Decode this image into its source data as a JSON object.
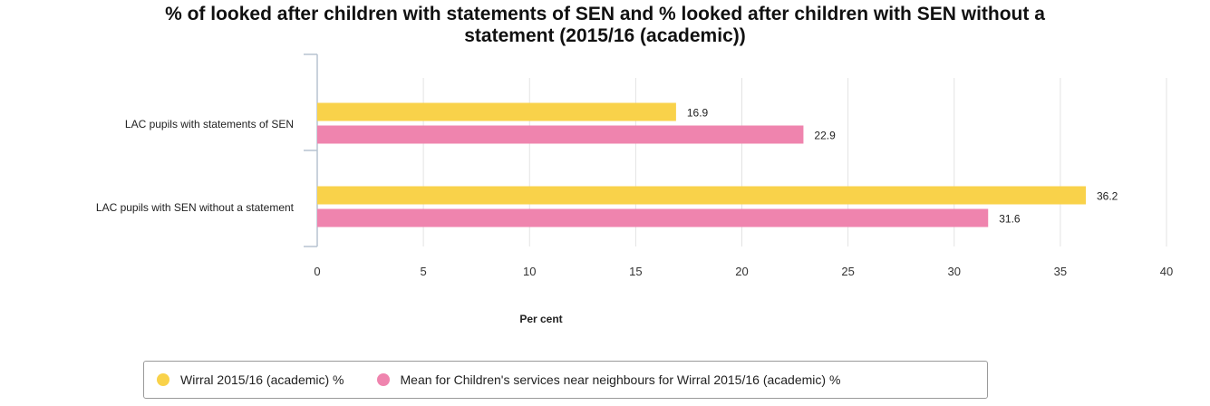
{
  "chart_data": {
    "type": "bar",
    "orientation": "horizontal",
    "title_lines": [
      "% of looked after children with statements of SEN and % looked after children with SEN without a",
      "statement (2015/16 (academic))"
    ],
    "categories": [
      "LAC pupils with statements of SEN",
      "LAC pupils with SEN without a statement"
    ],
    "series": [
      {
        "name": "Wirral 2015/16 (academic) %",
        "values": [
          16.9,
          36.2
        ],
        "color": "#f9d24a"
      },
      {
        "name": "Mean for Children's services near neighbours for Wirral 2015/16 (academic) %",
        "values": [
          22.9,
          31.6
        ],
        "color": "#ef84ae"
      }
    ],
    "value_labels": [
      [
        "16.9",
        "36.2"
      ],
      [
        "22.9",
        "31.6"
      ]
    ],
    "xlabel": "Per cent",
    "xlim": [
      0,
      40
    ],
    "xticks": [
      "0",
      "5",
      "10",
      "15",
      "20",
      "25",
      "30",
      "35",
      "40"
    ],
    "grid": "vertical",
    "legend_position": "bottom"
  }
}
